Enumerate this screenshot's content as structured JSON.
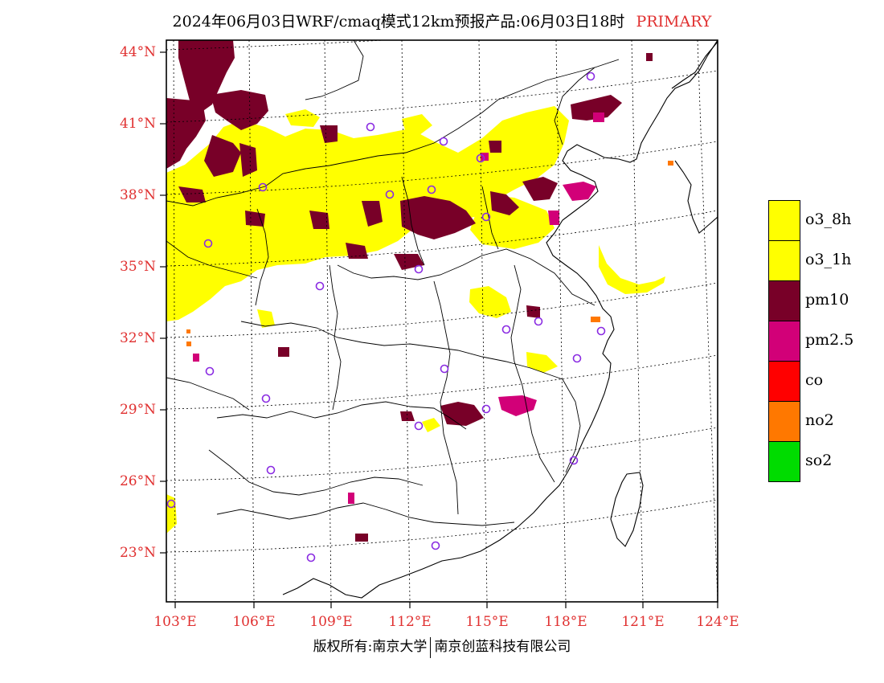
{
  "title": {
    "main": "2024年06月03日WRF/cmaq模式12km预报产品:06月03日18时",
    "subtitle": "PRIMARY"
  },
  "axes": {
    "latitude_labels": [
      "44°N",
      "41°N",
      "38°N",
      "35°N",
      "32°N",
      "29°N",
      "26°N",
      "23°N"
    ],
    "longitude_labels": [
      "103°E",
      "106°E",
      "109°E",
      "112°E",
      "115°E",
      "118°E",
      "121°E",
      "124°E"
    ]
  },
  "legend": {
    "items": [
      {
        "label": "o3_8h",
        "color": "#ffff00"
      },
      {
        "label": "o3_1h",
        "color": "#ffff00"
      },
      {
        "label": "pm10",
        "color": "#780028"
      },
      {
        "label": "pm2.5",
        "color": "#d20078"
      },
      {
        "label": "co",
        "color": "#ff0000"
      },
      {
        "label": "no2",
        "color": "#ff7800"
      },
      {
        "label": "so2",
        "color": "#00dc00"
      }
    ]
  },
  "colors": {
    "o3": "#ffff00",
    "pm10": "#780028",
    "pm25": "#d20078",
    "no2": "#ff7800",
    "station_marker": "#8a2be2",
    "axis_label": "#e03030"
  },
  "copyright": {
    "left": "版权所有:南京大学",
    "right": "南京创蓝科技有限公司"
  }
}
